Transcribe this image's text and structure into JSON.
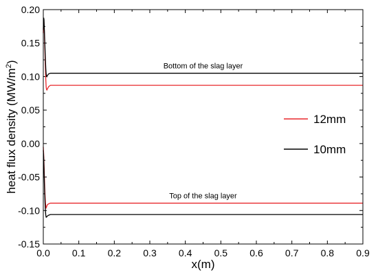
{
  "chart_data": {
    "type": "line",
    "title": "",
    "xlabel": "x(m)",
    "ylabel_main": "heat flux density (MW/m",
    "ylabel_sup": "2",
    "ylabel_close": ")",
    "xlim": [
      0.0,
      0.9
    ],
    "ylim": [
      -0.15,
      0.2
    ],
    "x_ticks": [
      0.0,
      0.1,
      0.2,
      0.3,
      0.4,
      0.5,
      0.6,
      0.7,
      0.8,
      0.9
    ],
    "x_tick_labels": [
      "0.0",
      "0.1",
      "0.2",
      "0.3",
      "0.4",
      "0.5",
      "0.6",
      "0.7",
      "0.8",
      "0.9"
    ],
    "y_ticks": [
      -0.15,
      -0.1,
      -0.05,
      0.0,
      0.05,
      0.1,
      0.15,
      0.2
    ],
    "y_tick_labels": [
      "-0.15",
      "-0.10",
      "-0.05",
      "0.00",
      "0.05",
      "0.10",
      "0.15",
      "0.20"
    ],
    "grid": false,
    "legend_position": "right",
    "legend": [
      {
        "name": "12mm",
        "color": "#e8262a"
      },
      {
        "name": "10mm",
        "color": "#000000"
      }
    ],
    "series": [
      {
        "name": "12mm",
        "color": "#e8262a",
        "location": "bottom",
        "x": [
          0.0,
          0.001,
          0.002,
          0.003,
          0.004,
          0.005,
          0.006,
          0.007,
          0.008,
          0.009,
          0.01,
          0.012,
          0.015,
          0.02,
          0.03,
          0.9
        ],
        "y": [
          0.165,
          0.185,
          0.18,
          0.165,
          0.148,
          0.13,
          0.112,
          0.096,
          0.085,
          0.081,
          0.08,
          0.082,
          0.085,
          0.087,
          0.087,
          0.087
        ]
      },
      {
        "name": "10mm",
        "color": "#000000",
        "location": "bottom",
        "x": [
          0.0,
          0.001,
          0.002,
          0.003,
          0.004,
          0.005,
          0.006,
          0.007,
          0.008,
          0.009,
          0.01,
          0.012,
          0.015,
          0.02,
          0.03,
          0.9
        ],
        "y": [
          0.17,
          0.188,
          0.185,
          0.17,
          0.155,
          0.14,
          0.125,
          0.112,
          0.104,
          0.101,
          0.1,
          0.102,
          0.104,
          0.105,
          0.105,
          0.105
        ]
      },
      {
        "name": "12mm",
        "color": "#e8262a",
        "location": "top",
        "x": [
          0.0,
          0.001,
          0.002,
          0.003,
          0.004,
          0.005,
          0.006,
          0.007,
          0.008,
          0.009,
          0.01,
          0.012,
          0.015,
          0.02,
          0.03,
          0.9
        ],
        "y": [
          -0.005,
          -0.015,
          -0.03,
          -0.048,
          -0.065,
          -0.078,
          -0.088,
          -0.094,
          -0.096,
          -0.095,
          -0.093,
          -0.091,
          -0.09,
          -0.089,
          -0.089,
          -0.089
        ]
      },
      {
        "name": "10mm",
        "color": "#000000",
        "location": "top",
        "x": [
          0.0,
          0.001,
          0.002,
          0.003,
          0.004,
          0.005,
          0.006,
          0.007,
          0.008,
          0.009,
          0.01,
          0.012,
          0.015,
          0.02,
          0.03,
          0.9
        ],
        "y": [
          -0.01,
          -0.02,
          -0.038,
          -0.058,
          -0.075,
          -0.09,
          -0.1,
          -0.107,
          -0.11,
          -0.11,
          -0.109,
          -0.108,
          -0.107,
          -0.106,
          -0.106,
          -0.106
        ]
      }
    ],
    "annotations": [
      {
        "text": "Bottom of the slag layer",
        "x": 0.45,
        "y": 0.112
      },
      {
        "text": "Top of the slag layer",
        "x": 0.45,
        "y": -0.082
      }
    ]
  }
}
